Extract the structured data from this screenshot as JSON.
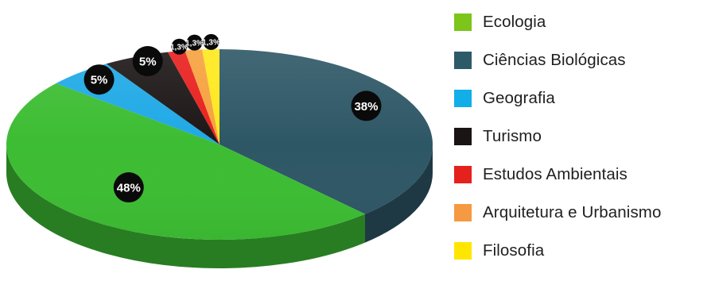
{
  "chart_data": {
    "type": "pie",
    "style": "3d",
    "legend_position": "right",
    "slices": [
      {
        "name": "Ciências Biológicas",
        "value": 38,
        "label": "38%",
        "color": "#2e5766"
      },
      {
        "name": "Ecologia",
        "value": 48,
        "label": "48%",
        "color": "#3dbd33"
      },
      {
        "name": "Geografia",
        "value": 5,
        "label": "5%",
        "color": "#1fa9e6"
      },
      {
        "name": "Turismo",
        "value": 5,
        "label": "5%",
        "color": "#1c1616"
      },
      {
        "name": "Estudos Ambientais",
        "value": 1.3,
        "label": "1,3%",
        "color": "#e8201e"
      },
      {
        "name": "Arquitetura e Urbanismo",
        "value": 1.3,
        "label": "1,3%",
        "color": "#f6a13e"
      },
      {
        "name": "Filosofia",
        "value": 1.3,
        "label": "1,3%",
        "color": "#ffe81c"
      }
    ],
    "legend": [
      {
        "label": "Ecologia",
        "color": "#7cc51b"
      },
      {
        "label": "Ciências Biológicas",
        "color": "#2d5a68"
      },
      {
        "label": "Geografia",
        "color": "#12aee8"
      },
      {
        "label": "Turismo",
        "color": "#1a1414"
      },
      {
        "label": "Estudos Ambientais",
        "color": "#e5211d"
      },
      {
        "label": "Arquitetura e Urbanismo",
        "color": "#f59a43"
      },
      {
        "label": "Filosofia",
        "color": "#ffe600"
      }
    ]
  }
}
